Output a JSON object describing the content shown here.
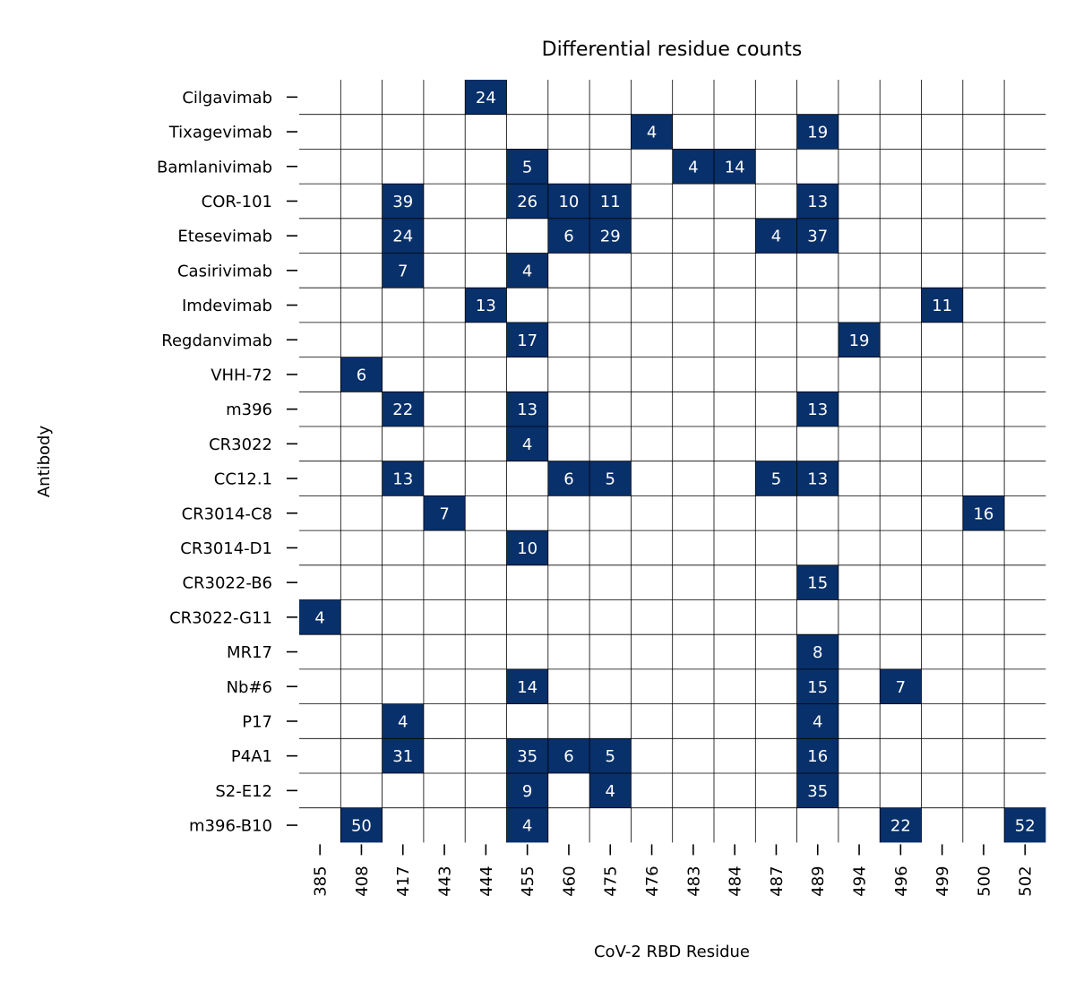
{
  "chart_data": {
    "type": "heatmap",
    "title": "Differential residue counts",
    "xlabel": "CoV-2 RBD Residue",
    "ylabel": "Antibody",
    "x": [
      "385",
      "408",
      "417",
      "443",
      "444",
      "455",
      "460",
      "475",
      "476",
      "483",
      "484",
      "487",
      "489",
      "494",
      "496",
      "499",
      "500",
      "502"
    ],
    "y": [
      "Cilgavimab",
      "Tixagevimab",
      "Bamlanivimab",
      "COR-101",
      "Etesevimab",
      "Casirivimab",
      "Imdevimab",
      "Regdanvimab",
      "VHH-72",
      "m396",
      "CR3022",
      "CC12.1",
      "CR3014-C8",
      "CR3014-D1",
      "CR3022-B6",
      "CR3022-G11",
      "MR17",
      "Nb#6",
      "P17",
      "P4A1",
      "S2-E12",
      "m396-B10"
    ],
    "values": [
      [
        "Cilgavimab",
        "444",
        24
      ],
      [
        "Tixagevimab",
        "476",
        4
      ],
      [
        "Tixagevimab",
        "489",
        19
      ],
      [
        "Bamlanivimab",
        "455",
        5
      ],
      [
        "Bamlanivimab",
        "483",
        4
      ],
      [
        "Bamlanivimab",
        "484",
        14
      ],
      [
        "COR-101",
        "417",
        39
      ],
      [
        "COR-101",
        "455",
        26
      ],
      [
        "COR-101",
        "460",
        10
      ],
      [
        "COR-101",
        "475",
        11
      ],
      [
        "COR-101",
        "489",
        13
      ],
      [
        "Etesevimab",
        "417",
        24
      ],
      [
        "Etesevimab",
        "460",
        6
      ],
      [
        "Etesevimab",
        "475",
        29
      ],
      [
        "Etesevimab",
        "487",
        4
      ],
      [
        "Etesevimab",
        "489",
        37
      ],
      [
        "Casirivimab",
        "417",
        7
      ],
      [
        "Casirivimab",
        "455",
        4
      ],
      [
        "Imdevimab",
        "444",
        13
      ],
      [
        "Imdevimab",
        "499",
        11
      ],
      [
        "Regdanvimab",
        "455",
        17
      ],
      [
        "Regdanvimab",
        "494",
        19
      ],
      [
        "VHH-72",
        "408",
        6
      ],
      [
        "m396",
        "417",
        22
      ],
      [
        "m396",
        "455",
        13
      ],
      [
        "m396",
        "489",
        13
      ],
      [
        "CR3022",
        "455",
        4
      ],
      [
        "CC12.1",
        "417",
        13
      ],
      [
        "CC12.1",
        "460",
        6
      ],
      [
        "CC12.1",
        "475",
        5
      ],
      [
        "CC12.1",
        "487",
        5
      ],
      [
        "CC12.1",
        "489",
        13
      ],
      [
        "CR3014-C8",
        "443",
        7
      ],
      [
        "CR3014-C8",
        "500",
        16
      ],
      [
        "CR3014-D1",
        "455",
        10
      ],
      [
        "CR3022-B6",
        "489",
        15
      ],
      [
        "CR3022-G11",
        "385",
        4
      ],
      [
        "MR17",
        "489",
        8
      ],
      [
        "Nb#6",
        "455",
        14
      ],
      [
        "Nb#6",
        "489",
        15
      ],
      [
        "Nb#6",
        "496",
        7
      ],
      [
        "P17",
        "417",
        4
      ],
      [
        "P17",
        "489",
        4
      ],
      [
        "P4A1",
        "417",
        31
      ],
      [
        "P4A1",
        "455",
        35
      ],
      [
        "P4A1",
        "460",
        6
      ],
      [
        "P4A1",
        "475",
        5
      ],
      [
        "P4A1",
        "489",
        16
      ],
      [
        "S2-E12",
        "455",
        9
      ],
      [
        "S2-E12",
        "475",
        4
      ],
      [
        "S2-E12",
        "489",
        35
      ],
      [
        "m396-B10",
        "408",
        50
      ],
      [
        "m396-B10",
        "455",
        4
      ],
      [
        "m396-B10",
        "496",
        22
      ],
      [
        "m396-B10",
        "502",
        52
      ]
    ],
    "filled_color": "#08306b",
    "empty_color": "#ffffff",
    "grid": true,
    "legend": "none"
  }
}
